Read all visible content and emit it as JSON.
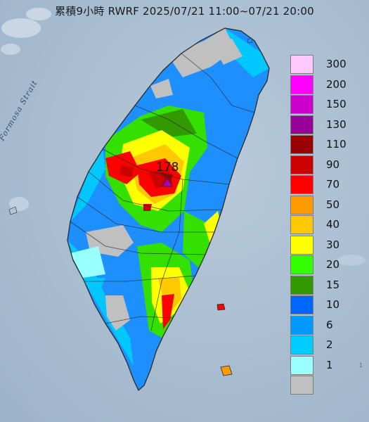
{
  "title": "累積9小時 RWRF 2025/07/21 11:00~07/21 20:00",
  "map_label": "Formosa Strait",
  "peak_value": "178",
  "corner_text": "1",
  "legend": [
    {
      "label": "300",
      "color": "#ffc8ff"
    },
    {
      "label": "200",
      "color": "#ff00ff"
    },
    {
      "label": "150",
      "color": "#cc00cc"
    },
    {
      "label": "130",
      "color": "#990099"
    },
    {
      "label": "110",
      "color": "#990000"
    },
    {
      "label": "90",
      "color": "#cc0000"
    },
    {
      "label": "70",
      "color": "#ff0000"
    },
    {
      "label": "50",
      "color": "#ff9900"
    },
    {
      "label": "40",
      "color": "#ffc800"
    },
    {
      "label": "30",
      "color": "#ffff00"
    },
    {
      "label": "20",
      "color": "#33ff00"
    },
    {
      "label": "15",
      "color": "#339900"
    },
    {
      "label": "10",
      "color": "#0066ff"
    },
    {
      "label": "6",
      "color": "#0099ff"
    },
    {
      "label": "2",
      "color": "#00ccff"
    },
    {
      "label": "1",
      "color": "#99ffff"
    },
    {
      "label": "",
      "color": "#c0c0c0"
    }
  ],
  "colors": {
    "land_base": "#1e8fff",
    "peak_marker": "#b000b0"
  }
}
